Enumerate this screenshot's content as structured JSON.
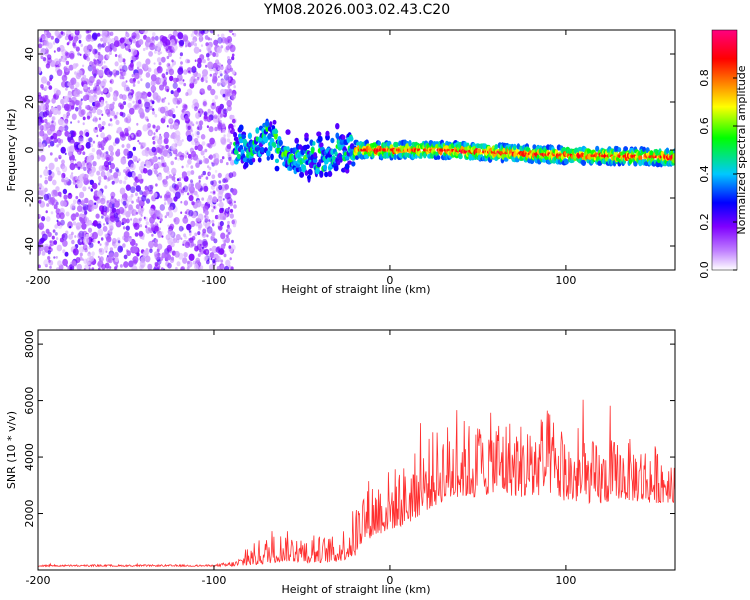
{
  "title": "YM08.2026.003.02.43.C20",
  "chart_data": [
    {
      "type": "heatmap",
      "xlabel": "Height of straight line (km)",
      "ylabel": "Frequency (Hz)",
      "xlim": [
        -200,
        162
      ],
      "ylim": [
        -50,
        50
      ],
      "x_ticks": [
        -200,
        -100,
        0,
        100
      ],
      "y_ticks": [
        -40,
        -20,
        0,
        20,
        40
      ],
      "colorbar": {
        "label": "Normalized spectral amplitude",
        "range": [
          0,
          1
        ],
        "ticks": [
          "0.0",
          "0.2",
          "0.4",
          "0.6",
          "0.8"
        ],
        "colors": [
          "#ffffff",
          "#8000ff",
          "#0000ff",
          "#00c8ff",
          "#00ff00",
          "#ffff00",
          "#ff8000",
          "#ff0000",
          "#ff0080"
        ]
      },
      "regions": [
        {
          "x_range": [
            -200,
            -88
          ],
          "description": "scattered low-amplitude noise",
          "amplitude_range": [
            0.0,
            0.25
          ]
        },
        {
          "x_range": [
            -88,
            -20
          ],
          "center_freq": [
            0,
            5,
            -5,
            0
          ],
          "amplitude_range": [
            0.2,
            0.55
          ]
        },
        {
          "x_range": [
            -20,
            162
          ],
          "center_freq": [
            0,
            0,
            -2,
            -3
          ],
          "amplitude_range": [
            0.3,
            0.95
          ]
        }
      ]
    },
    {
      "type": "line",
      "xlabel": "Height of straight line (km)",
      "ylabel": "SNR (10 * v/v)",
      "xlim": [
        -200,
        162
      ],
      "ylim": [
        0,
        8500
      ],
      "x_ticks": [
        -200,
        -100,
        0,
        100
      ],
      "y_ticks": [
        2000,
        4000,
        6000,
        8000
      ],
      "color": "#ff3030",
      "envelope": {
        "x": [
          -200,
          -100,
          -88,
          -75,
          -60,
          -45,
          -30,
          -20,
          -15,
          0,
          10,
          20,
          30,
          40,
          50,
          60,
          70,
          80,
          90,
          100,
          110,
          120,
          130,
          140,
          150,
          162
        ],
        "base": [
          150,
          150,
          200,
          500,
          700,
          600,
          600,
          1100,
          1800,
          2200,
          2400,
          3000,
          3400,
          3600,
          3500,
          3800,
          3600,
          3500,
          3800,
          3300,
          3200,
          3100,
          3300,
          3200,
          3100,
          3100
        ],
        "amp": [
          60,
          60,
          200,
          900,
          1100,
          1000,
          900,
          1800,
          2200,
          2200,
          2200,
          2600,
          2800,
          2800,
          2700,
          2900,
          2800,
          2700,
          3000,
          2500,
          2300,
          2200,
          2200,
          2200,
          2100,
          2000
        ]
      }
    }
  ]
}
